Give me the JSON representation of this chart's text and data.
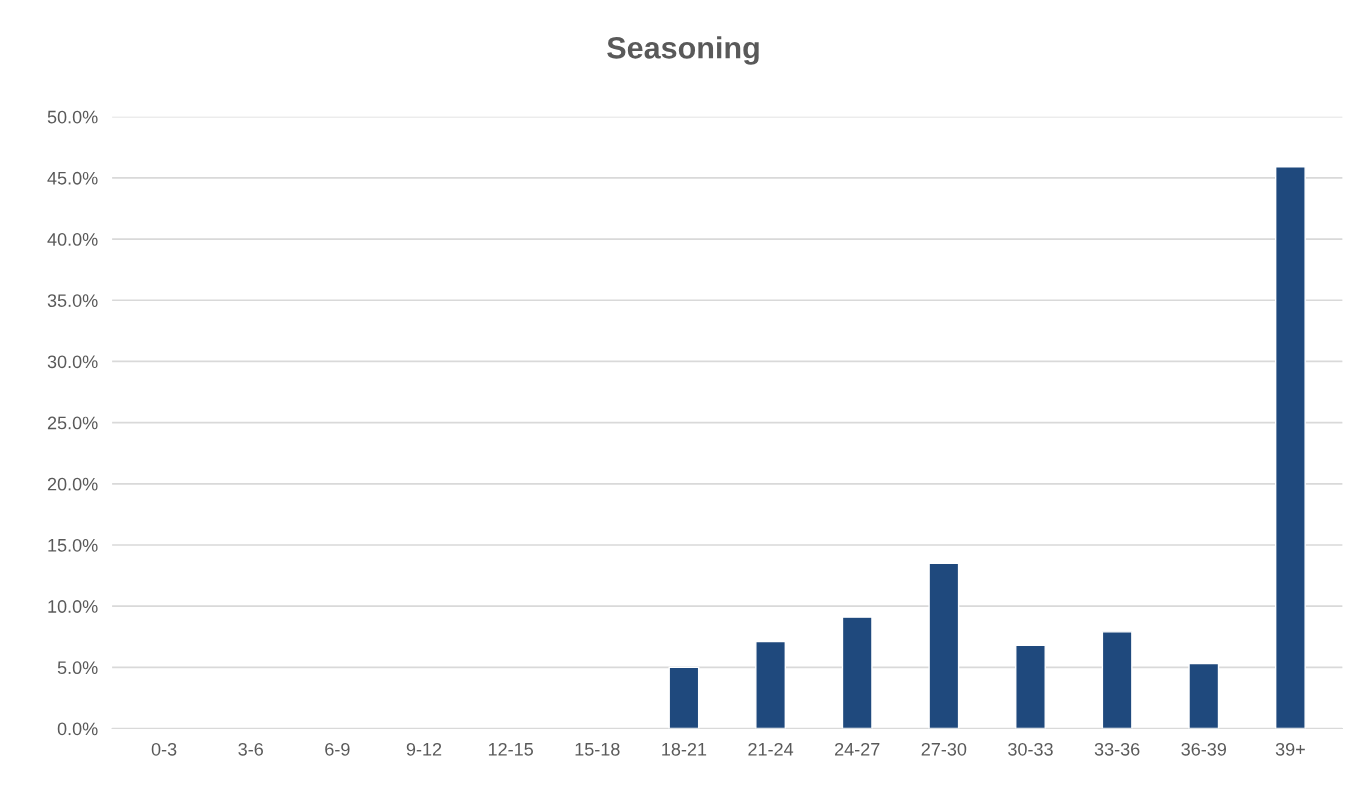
{
  "chart_data": {
    "type": "bar",
    "title": "Seasoning",
    "categories": [
      "0-3",
      "3-6",
      "6-9",
      "9-12",
      "12-15",
      "15-18",
      "18-21",
      "21-24",
      "24-27",
      "27-30",
      "30-33",
      "33-36",
      "36-39",
      "39+"
    ],
    "values": [
      null,
      null,
      null,
      null,
      null,
      null,
      5.0,
      7.1,
      9.1,
      13.5,
      6.8,
      7.9,
      5.3,
      45.9
    ],
    "color": "#1f497d",
    "ylim": [
      0,
      50
    ],
    "yticks": [
      {
        "value": 0,
        "label": "0.0%"
      },
      {
        "value": 5,
        "label": "5.0%"
      },
      {
        "value": 10,
        "label": "10.0%"
      },
      {
        "value": 15,
        "label": "15.0%"
      },
      {
        "value": 20,
        "label": "20.0%"
      },
      {
        "value": 25,
        "label": "25.0%"
      },
      {
        "value": 30,
        "label": "30.0%"
      },
      {
        "value": 35,
        "label": "35.0%"
      },
      {
        "value": 40,
        "label": "40.0%"
      },
      {
        "value": 45,
        "label": "45.0%"
      },
      {
        "value": 50,
        "label": "50.0%"
      }
    ],
    "grid": "y",
    "legend": false
  }
}
